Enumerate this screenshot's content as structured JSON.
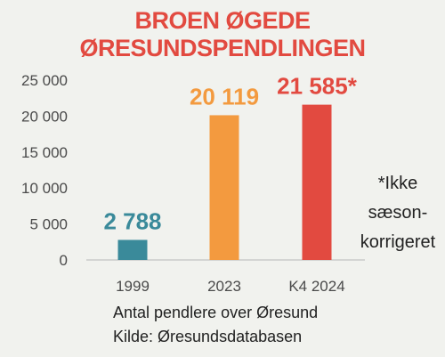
{
  "title": "BROEN ØGEDE ØRESUNDSPENDLINGEN",
  "colors": {
    "title": "#e24a40",
    "axis": "#b8b8b8"
  },
  "chart_data": {
    "type": "bar",
    "categories": [
      "1999",
      "2023",
      "K4 2024"
    ],
    "values": [
      2788,
      20119,
      21585
    ],
    "data_labels": [
      "2 788",
      "20 119",
      "21 585*"
    ],
    "colors": [
      "#3a8a9a",
      "#f39a3f",
      "#e24a40"
    ],
    "yticks": [
      "0",
      "5 000",
      "10 000",
      "15 000",
      "20 000",
      "25 000"
    ],
    "ylim": [
      0,
      25000
    ],
    "grid": false
  },
  "note_lines": [
    "*Ikke",
    "sæson-",
    "korrigeret"
  ],
  "footer": {
    "line1": "Antal pendlere over Øresund",
    "line2": "Kilde: Øresundsdatabasen"
  }
}
